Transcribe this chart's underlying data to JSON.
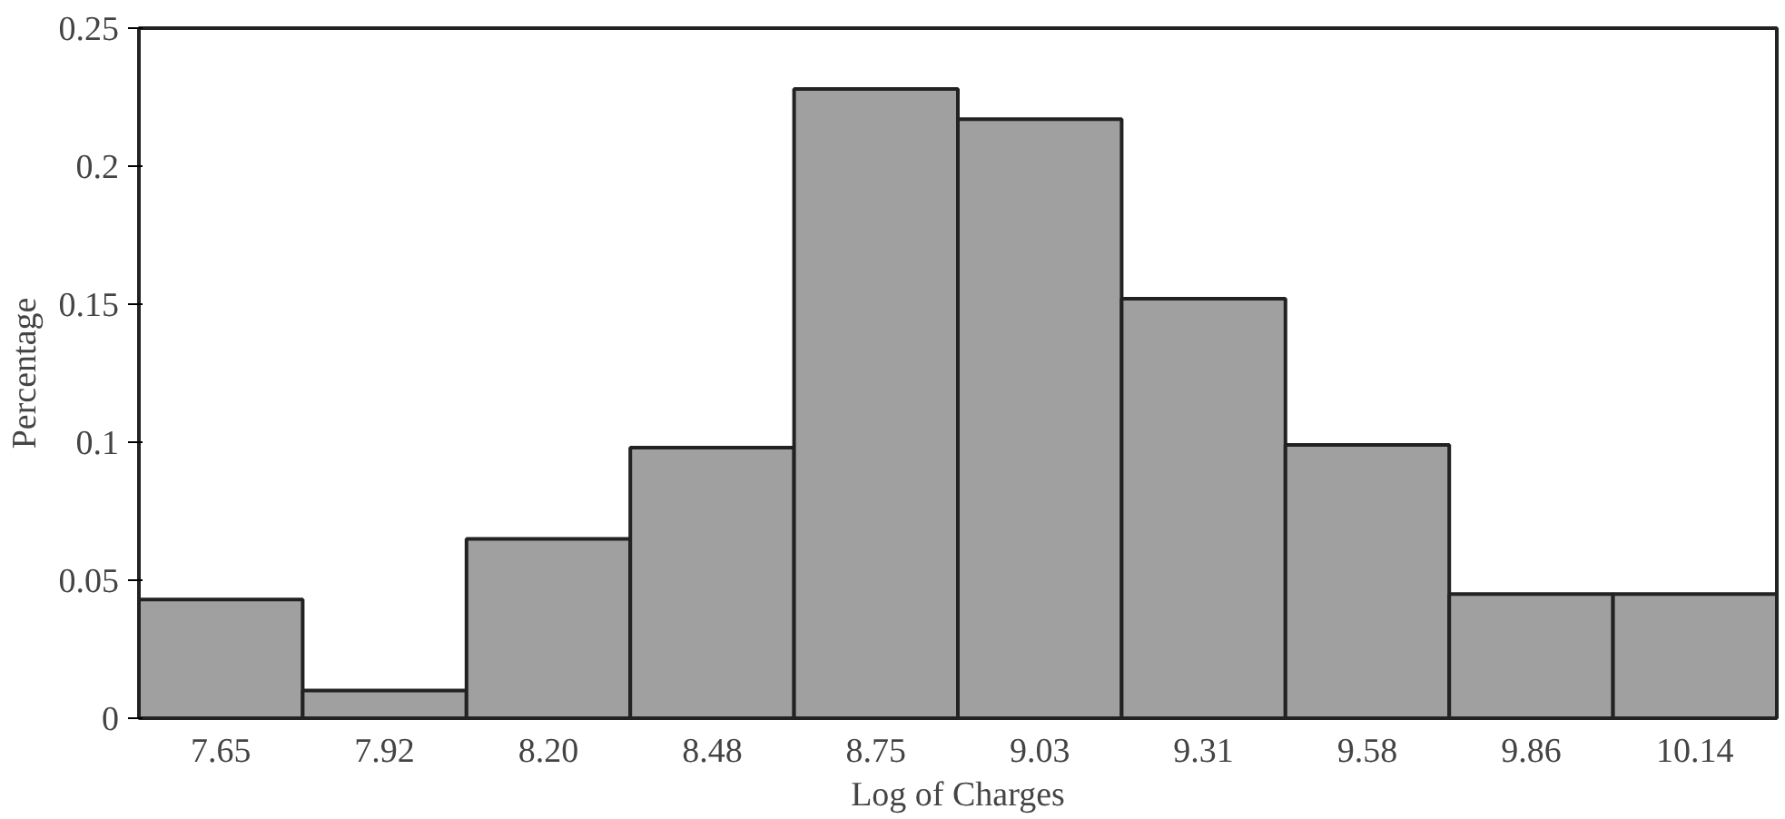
{
  "chart_data": {
    "type": "bar",
    "xlabel": "Log of Charges",
    "ylabel": "Percentage",
    "categories": [
      "7.65",
      "7.92",
      "8.20",
      "8.48",
      "8.75",
      "9.03",
      "9.31",
      "9.58",
      "9.86",
      "10.14"
    ],
    "values": [
      0.043,
      0.01,
      0.065,
      0.098,
      0.228,
      0.217,
      0.152,
      0.099,
      0.045,
      0.045
    ],
    "color": "#a0a0a0",
    "ylim": [
      0,
      0.25
    ],
    "yticks": [
      0,
      0.05,
      0.1,
      0.15,
      0.2,
      0.25
    ],
    "grid": false
  }
}
